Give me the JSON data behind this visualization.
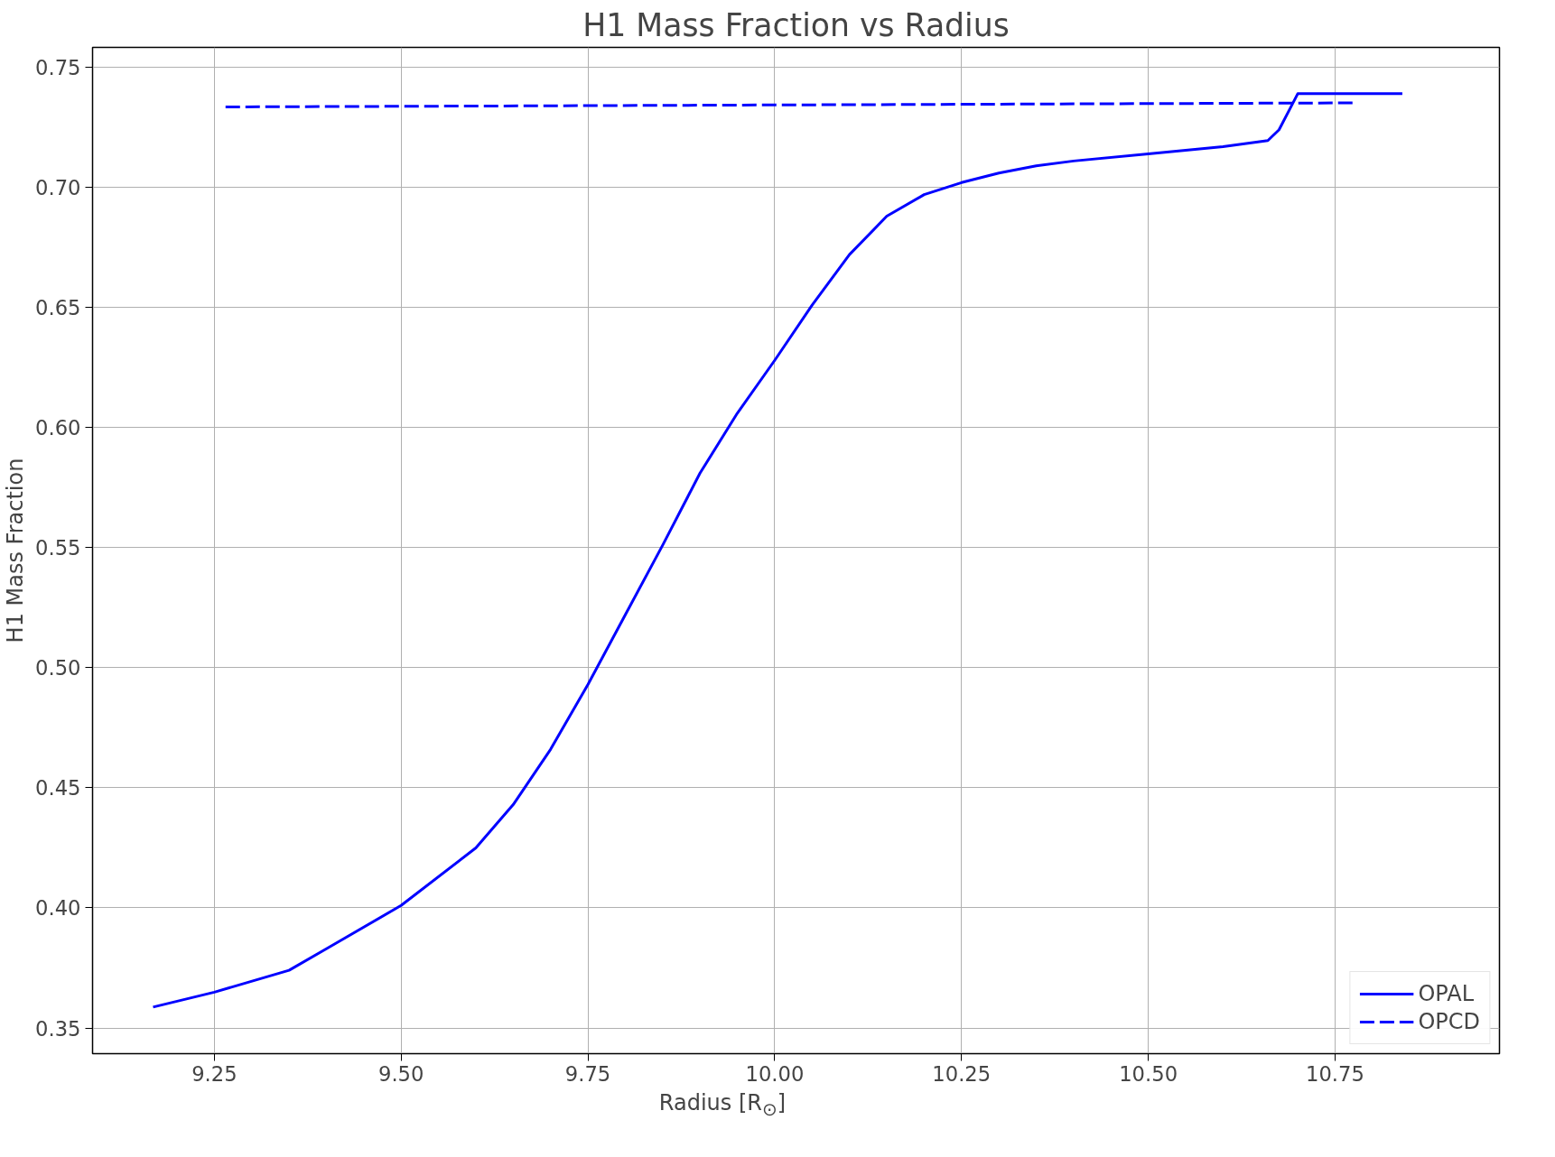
{
  "chart_data": {
    "type": "line",
    "title": "H1 Mass Fraction vs Radius",
    "xlabel": "Radius [R$_{⊙}$]",
    "ylabel": "H1 Mass Fraction",
    "xlim": [
      9.087,
      10.97
    ],
    "ylim": [
      0.3393,
      0.7583
    ],
    "xticks": [
      {
        "value": 9.25,
        "label": "9.25"
      },
      {
        "value": 9.5,
        "label": "9.50"
      },
      {
        "value": 9.75,
        "label": "9.75"
      },
      {
        "value": 10.0,
        "label": "10.00"
      },
      {
        "value": 10.25,
        "label": "10.25"
      },
      {
        "value": 10.5,
        "label": "10.50"
      },
      {
        "value": 10.75,
        "label": "10.75"
      }
    ],
    "yticks": [
      {
        "value": 0.35,
        "label": "0.35"
      },
      {
        "value": 0.4,
        "label": "0.40"
      },
      {
        "value": 0.45,
        "label": "0.45"
      },
      {
        "value": 0.5,
        "label": "0.50"
      },
      {
        "value": 0.55,
        "label": "0.55"
      },
      {
        "value": 0.6,
        "label": "0.60"
      },
      {
        "value": 0.65,
        "label": "0.65"
      },
      {
        "value": 0.7,
        "label": "0.70"
      },
      {
        "value": 0.75,
        "label": "0.75"
      }
    ],
    "grid": true,
    "legend": "bottom right",
    "marker": "none",
    "series": [
      {
        "name": "OPAL",
        "color": "#0000ff",
        "line_style": "solid",
        "x": [
          9.168,
          9.25,
          9.35,
          9.4,
          9.5,
          9.6,
          9.65,
          9.7,
          9.75,
          9.8,
          9.85,
          9.9,
          9.95,
          10.0,
          10.05,
          10.1,
          10.15,
          10.2,
          10.25,
          10.3,
          10.35,
          10.4,
          10.5,
          10.6,
          10.66,
          10.675,
          10.69,
          10.7,
          10.84
        ],
        "values": [
          0.3587,
          0.3649,
          0.374,
          0.383,
          0.401,
          0.425,
          0.443,
          0.466,
          0.493,
          0.522,
          0.551,
          0.581,
          0.606,
          0.628,
          0.651,
          0.672,
          0.688,
          0.697,
          0.702,
          0.706,
          0.709,
          0.711,
          0.714,
          0.717,
          0.7195,
          0.724,
          0.733,
          0.739,
          0.739
        ]
      },
      {
        "name": "OPCD",
        "color": "#0000ff",
        "line_style": "dashed",
        "x": [
          9.265,
          10.78
        ],
        "values": [
          0.7335,
          0.7352
        ]
      }
    ]
  }
}
